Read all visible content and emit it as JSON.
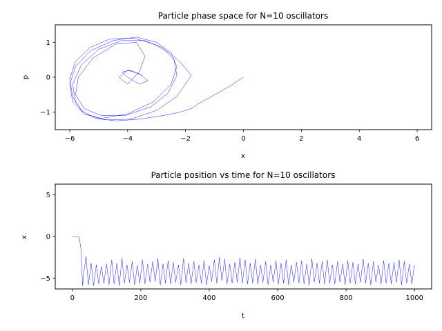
{
  "chart_data": [
    {
      "type": "line",
      "title": "Particle phase space for N=10 oscillators",
      "xlabel": "x",
      "ylabel": "p",
      "xlim": [
        -6.5,
        6.5
      ],
      "ylim": [
        -1.5,
        1.5
      ],
      "xticks": [
        -6,
        -4,
        -2,
        0,
        2,
        4,
        6
      ],
      "xtick_labels": [
        "−6",
        "−4",
        "−2",
        "0",
        "2",
        "4",
        "6"
      ],
      "yticks": [
        -1,
        0,
        1
      ],
      "ytick_labels": [
        "−1",
        "0",
        "1"
      ],
      "grid": false,
      "color": "#0000ff",
      "series": [
        {
          "x": [
            0.0,
            -0.5,
            -1.1,
            -1.6,
            -1.8,
            -2.2,
            -2.8,
            -3.6,
            -4.4,
            -5.1,
            -5.6,
            -5.9,
            -6.0,
            -5.8,
            -5.3,
            -4.6,
            -3.8,
            -3.1,
            -2.6,
            -2.2,
            -1.8,
            -2.3,
            -3.0,
            -3.9,
            -4.8,
            -5.5,
            -5.9,
            -6.0,
            -5.8,
            -5.3,
            -4.5,
            -3.7,
            -3.0,
            -2.5,
            -2.3,
            -2.5,
            -3.1,
            -4.0,
            -4.9,
            -5.5,
            -5.8,
            -5.9,
            -5.6,
            -5.0,
            -4.2,
            -3.4,
            -2.8,
            -2.4,
            -2.3,
            -2.6,
            -3.2,
            -4.1,
            -4.9,
            -5.5,
            -5.8,
            -5.7,
            -5.2,
            -4.4,
            -3.7,
            -3.4,
            -3.6,
            -4.0,
            -4.3,
            -4.0,
            -3.6,
            -3.3,
            -3.6,
            -4.0,
            -4.2,
            -3.9,
            -3.5
          ],
          "y": [
            0.0,
            -0.27,
            -0.55,
            -0.78,
            -0.9,
            -1.0,
            -1.1,
            -1.2,
            -1.25,
            -1.18,
            -0.95,
            -0.55,
            -0.05,
            0.45,
            0.85,
            1.1,
            1.12,
            0.95,
            0.72,
            0.45,
            0.05,
            -0.55,
            -0.95,
            -1.2,
            -1.22,
            -1.05,
            -0.7,
            -0.2,
            0.3,
            0.75,
            1.05,
            1.15,
            1.0,
            0.7,
            0.3,
            -0.2,
            -0.7,
            -1.05,
            -1.18,
            -1.05,
            -0.7,
            -0.2,
            0.35,
            0.8,
            1.05,
            1.05,
            0.85,
            0.5,
            0.05,
            -0.45,
            -0.85,
            -1.1,
            -1.1,
            -0.9,
            -0.5,
            0.0,
            0.55,
            0.95,
            1.0,
            0.6,
            0.15,
            -0.2,
            0.0,
            0.2,
            0.1,
            -0.1,
            -0.2,
            0.0,
            0.15,
            0.2,
            0.05
          ]
        }
      ]
    },
    {
      "type": "line",
      "title": "Particle position vs time for N=10 oscillators",
      "xlabel": "t",
      "ylabel": "x",
      "xlim": [
        -50,
        1050
      ],
      "ylim": [
        -6.3,
        6.3
      ],
      "xticks": [
        0,
        200,
        400,
        600,
        800,
        1000
      ],
      "xtick_labels": [
        "0",
        "200",
        "400",
        "600",
        "800",
        "1000"
      ],
      "yticks": [
        -5,
        0,
        5
      ],
      "ytick_labels": [
        "−5",
        "0",
        "5"
      ],
      "grid": false,
      "color": "#0000ff",
      "series": [
        {
          "x": [
            0,
            10,
            20,
            25,
            28,
            30,
            33,
            40,
            47,
            55,
            62,
            70,
            77,
            85,
            92,
            100,
            107,
            115,
            122,
            130,
            137,
            145,
            152,
            160,
            167,
            175,
            182,
            190,
            197,
            205,
            212,
            220,
            227,
            235,
            242,
            250,
            257,
            265,
            272,
            280,
            287,
            295,
            302,
            310,
            317,
            325,
            332,
            340,
            347,
            355,
            362,
            370,
            377,
            385,
            392,
            400,
            407,
            415,
            422,
            430,
            437,
            445,
            452,
            460,
            467,
            475,
            482,
            490,
            497,
            505,
            512,
            520,
            527,
            535,
            542,
            550,
            557,
            565,
            572,
            580,
            587,
            595,
            602,
            610,
            617,
            625,
            632,
            640,
            647,
            655,
            662,
            670,
            677,
            685,
            692,
            700,
            707,
            715,
            722,
            730,
            737,
            745,
            752,
            760,
            767,
            775,
            782,
            790,
            797,
            805,
            812,
            820,
            827,
            835,
            842,
            850,
            857,
            865,
            872,
            880,
            887,
            895,
            902,
            910,
            917,
            925,
            932,
            940,
            947,
            955,
            962,
            970,
            977,
            985,
            992,
            1000
          ],
          "y": [
            0.0,
            0.0,
            -0.1,
            -1.5,
            -4.0,
            -5.9,
            -4.5,
            -2.4,
            -5.8,
            -3.2,
            -5.9,
            -3.4,
            -5.7,
            -3.6,
            -5.6,
            -3.3,
            -5.8,
            -2.8,
            -5.7,
            -3.2,
            -5.9,
            -2.6,
            -5.6,
            -3.4,
            -5.5,
            -3.0,
            -5.8,
            -3.5,
            -5.6,
            -2.8,
            -5.7,
            -3.3,
            -5.5,
            -3.0,
            -5.4,
            -2.7,
            -5.8,
            -3.3,
            -5.6,
            -2.9,
            -5.7,
            -3.1,
            -5.5,
            -3.4,
            -5.8,
            -2.6,
            -5.6,
            -3.2,
            -5.7,
            -3.0,
            -5.5,
            -3.4,
            -5.6,
            -2.9,
            -5.8,
            -3.5,
            -5.4,
            -2.8,
            -5.6,
            -2.5,
            -5.3,
            -2.7,
            -5.7,
            -3.3,
            -5.6,
            -3.1,
            -5.5,
            -2.6,
            -5.6,
            -2.8,
            -5.7,
            -3.2,
            -5.6,
            -2.7,
            -5.7,
            -3.4,
            -5.5,
            -3.0,
            -5.8,
            -3.4,
            -5.5,
            -2.9,
            -5.7,
            -3.2,
            -5.6,
            -2.8,
            -5.8,
            -3.4,
            -5.5,
            -3.1,
            -5.6,
            -2.9,
            -5.7,
            -3.3,
            -5.8,
            -2.7,
            -5.5,
            -3.2,
            -5.6,
            -3.0,
            -5.7,
            -2.8,
            -5.6,
            -3.4,
            -5.7,
            -3.0,
            -5.5,
            -3.3,
            -5.8,
            -2.9,
            -5.6,
            -3.1,
            -5.7,
            -3.3,
            -5.5,
            -2.7,
            -5.6,
            -3.2,
            -5.8,
            -3.0,
            -5.5,
            -3.4,
            -5.7,
            -2.9,
            -5.6,
            -3.2,
            -5.7,
            -3.1,
            -5.5,
            -2.8,
            -5.8,
            -3.0,
            -5.6,
            -3.3,
            -5.7,
            -3.4
          ]
        }
      ]
    }
  ]
}
